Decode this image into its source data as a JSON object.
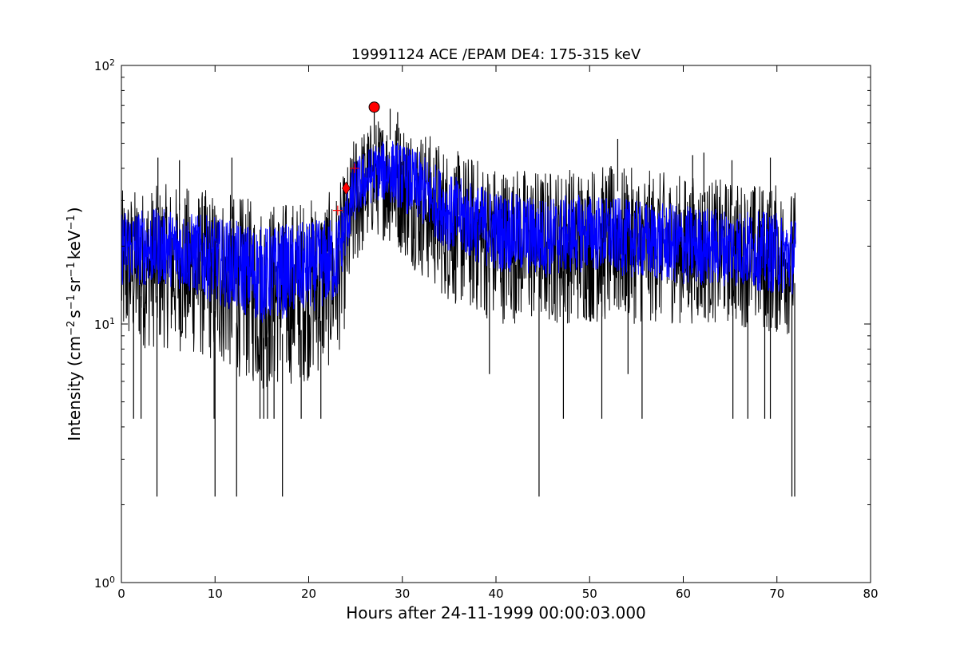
{
  "chart_data": {
    "type": "line",
    "title": "19991124 ACE /EPAM DE4: 175-315 keV",
    "xlabel": "Hours after 24-11-1999 00:00:03.000",
    "ylabel": {
      "main": "Intensity (cm",
      "exp1": "−2",
      "mid1": "s",
      "exp2": "−1",
      "mid2": "sr",
      "exp3": "−1",
      "mid3": "keV",
      "exp4": "−1",
      "end": ")"
    },
    "xlim": [
      0,
      80
    ],
    "ylim": [
      1,
      100
    ],
    "yscale": "log",
    "grid": false,
    "xticks": [
      0,
      10,
      20,
      30,
      40,
      50,
      60,
      70,
      80
    ],
    "yticks": [
      {
        "value": 1,
        "base": "10",
        "exp": "0"
      },
      {
        "value": 10,
        "base": "10",
        "exp": "1"
      },
      {
        "value": 100,
        "base": "10",
        "exp": "2"
      }
    ],
    "series": [
      {
        "style": "line",
        "color": "#000000",
        "x_range": [
          0,
          72
        ],
        "envelope": {
          "x": [
            0,
            5,
            10,
            15,
            20,
            23,
            24,
            25,
            27,
            29,
            32,
            35,
            40,
            45,
            50,
            55,
            60,
            65,
            70,
            72
          ],
          "high": [
            33,
            35,
            33,
            30,
            31,
            33,
            40,
            55,
            62,
            65,
            58,
            48,
            42,
            40,
            42,
            40,
            38,
            36,
            35,
            33
          ],
          "low": [
            8,
            8,
            7,
            5.5,
            6,
            7,
            10,
            16,
            22,
            20,
            15,
            12,
            10,
            10,
            10,
            10,
            10,
            10,
            9,
            9
          ]
        },
        "spikes_down": [
          {
            "x": 3.8,
            "y": 2.15
          },
          {
            "x": 10.0,
            "y": 2.15
          },
          {
            "x": 12.3,
            "y": 2.15
          },
          {
            "x": 17.2,
            "y": 2.15
          },
          {
            "x": 44.6,
            "y": 2.15
          },
          {
            "x": 71.6,
            "y": 2.15
          },
          {
            "x": 71.9,
            "y": 2.15
          },
          {
            "x": 1.3,
            "y": 4.3
          },
          {
            "x": 2.1,
            "y": 4.3
          },
          {
            "x": 9.9,
            "y": 4.3
          },
          {
            "x": 14.8,
            "y": 4.3
          },
          {
            "x": 15.2,
            "y": 4.3
          },
          {
            "x": 15.6,
            "y": 4.3
          },
          {
            "x": 16.3,
            "y": 4.3
          },
          {
            "x": 19.2,
            "y": 4.3
          },
          {
            "x": 21.3,
            "y": 4.3
          },
          {
            "x": 47.2,
            "y": 4.3
          },
          {
            "x": 51.3,
            "y": 4.3
          },
          {
            "x": 55.6,
            "y": 4.3
          },
          {
            "x": 65.3,
            "y": 4.3
          },
          {
            "x": 66.9,
            "y": 4.3
          },
          {
            "x": 68.7,
            "y": 4.3
          },
          {
            "x": 69.3,
            "y": 4.3
          },
          {
            "x": 39.3,
            "y": 6.4
          },
          {
            "x": 54.1,
            "y": 6.4
          }
        ],
        "spikes_up": [
          {
            "x": 3.9,
            "y": 44
          },
          {
            "x": 6.2,
            "y": 43
          },
          {
            "x": 11.8,
            "y": 44
          },
          {
            "x": 27.0,
            "y": 68
          },
          {
            "x": 28.7,
            "y": 68
          },
          {
            "x": 29.5,
            "y": 66
          },
          {
            "x": 53.0,
            "y": 52
          },
          {
            "x": 61.0,
            "y": 45
          },
          {
            "x": 62.2,
            "y": 46
          },
          {
            "x": 65.2,
            "y": 43
          },
          {
            "x": 69.3,
            "y": 44
          }
        ]
      },
      {
        "style": "line",
        "color": "#0000ff",
        "x_range": [
          0,
          72
        ],
        "envelope": {
          "x": [
            0,
            5,
            10,
            15,
            20,
            23,
            24,
            25,
            27,
            29,
            32,
            35,
            40,
            45,
            50,
            55,
            60,
            65,
            70,
            72
          ],
          "high": [
            28,
            28,
            26,
            24,
            25,
            26,
            33,
            44,
            50,
            52,
            46,
            38,
            33,
            31,
            32,
            30,
            29,
            28,
            27,
            26
          ],
          "low": [
            14,
            14,
            12,
            10,
            11,
            12,
            18,
            25,
            30,
            29,
            24,
            19,
            16,
            15,
            16,
            15,
            14,
            14,
            13,
            13
          ]
        }
      }
    ],
    "markers": [
      {
        "shape": "plus",
        "x": 23.1,
        "y": 27.5,
        "color": "#ff0000"
      },
      {
        "shape": "diamond",
        "x": 24.0,
        "y": 33.5,
        "color": "#ff0000"
      },
      {
        "shape": "plus",
        "x": 24.9,
        "y": 40,
        "color": "#ff0000"
      },
      {
        "shape": "circle",
        "x": 27.0,
        "y": 69,
        "color": "#ff0000"
      }
    ]
  }
}
